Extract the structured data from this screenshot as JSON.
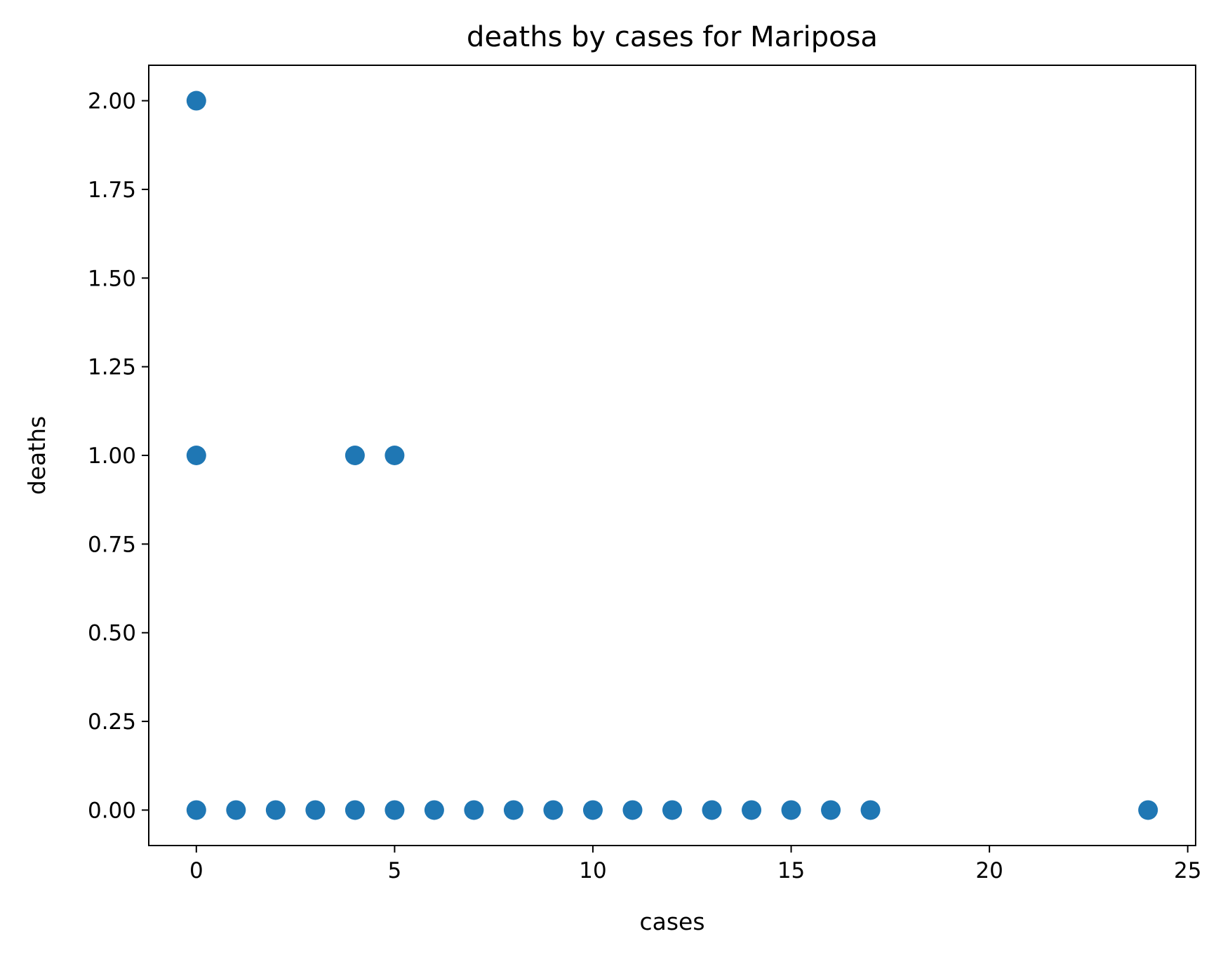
{
  "chart_data": {
    "type": "scatter",
    "title": "deaths by cases for Mariposa",
    "xlabel": "cases",
    "ylabel": "deaths",
    "xlim": [
      -1.2,
      25.2
    ],
    "ylim": [
      -0.1,
      2.1
    ],
    "x_ticks": [
      0,
      5,
      10,
      15,
      20,
      25
    ],
    "x_tick_labels": [
      "0",
      "5",
      "10",
      "15",
      "20",
      "25"
    ],
    "y_ticks": [
      0,
      0.25,
      0.5,
      0.75,
      1.0,
      1.25,
      1.5,
      1.75,
      2.0
    ],
    "y_tick_labels": [
      "0.00",
      "0.25",
      "0.50",
      "0.75",
      "1.00",
      "1.25",
      "1.50",
      "1.75",
      "2.00"
    ],
    "grid": false,
    "marker_color": "#1f77b4",
    "series": [
      {
        "points": [
          {
            "x": 0,
            "y": 2
          },
          {
            "x": 0,
            "y": 1
          },
          {
            "x": 4,
            "y": 1
          },
          {
            "x": 5,
            "y": 1
          },
          {
            "x": 0,
            "y": 0
          },
          {
            "x": 1,
            "y": 0
          },
          {
            "x": 2,
            "y": 0
          },
          {
            "x": 3,
            "y": 0
          },
          {
            "x": 4,
            "y": 0
          },
          {
            "x": 5,
            "y": 0
          },
          {
            "x": 6,
            "y": 0
          },
          {
            "x": 7,
            "y": 0
          },
          {
            "x": 8,
            "y": 0
          },
          {
            "x": 9,
            "y": 0
          },
          {
            "x": 10,
            "y": 0
          },
          {
            "x": 11,
            "y": 0
          },
          {
            "x": 12,
            "y": 0
          },
          {
            "x": 13,
            "y": 0
          },
          {
            "x": 14,
            "y": 0
          },
          {
            "x": 15,
            "y": 0
          },
          {
            "x": 16,
            "y": 0
          },
          {
            "x": 17,
            "y": 0
          },
          {
            "x": 24,
            "y": 0
          }
        ]
      }
    ]
  }
}
